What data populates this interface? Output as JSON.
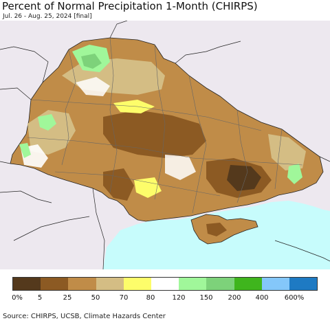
{
  "title": "Percent of Normal Precipitation 1-Month (CHIRPS)",
  "subtitle": "Jul. 26 - Aug. 25, 2024 [final]",
  "source": "Source: CHIRPS, UCSB, Climate Hazards Center",
  "colors": {
    "sea": "#c7fcfc",
    "outside_land": "#ede8ef",
    "boundary": "#333333",
    "oblast_line": "#666666"
  },
  "legend": {
    "colors": [
      "#54391c",
      "#8c5a23",
      "#c08c48",
      "#d4bd84",
      "#fdfd6a",
      "#ffffff",
      "#a0f79a",
      "#7dd27a",
      "#3fb51d",
      "#84c7fa",
      "#1e7ac3"
    ],
    "labels": [
      "0%",
      "5",
      "25",
      "50",
      "70",
      "80",
      "120",
      "150",
      "200",
      "400",
      "600%"
    ]
  }
}
